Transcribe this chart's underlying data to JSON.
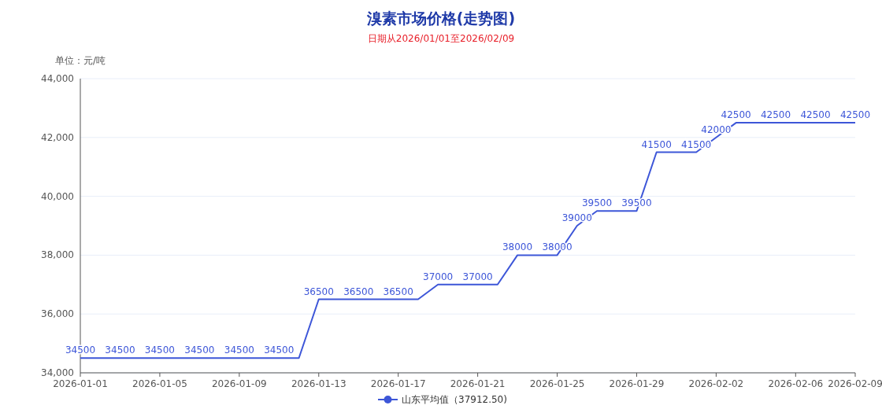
{
  "chart_data": {
    "type": "line",
    "title": "溴素市场价格(走势图)",
    "subtitle": "日期从2026/01/01至2026/02/09",
    "ylabel": "单位：元/吨",
    "x": [
      "2026-01-01",
      "2026-01-02",
      "2026-01-03",
      "2026-01-04",
      "2026-01-05",
      "2026-01-06",
      "2026-01-07",
      "2026-01-08",
      "2026-01-09",
      "2026-01-10",
      "2026-01-11",
      "2026-01-12",
      "2026-01-13",
      "2026-01-14",
      "2026-01-15",
      "2026-01-16",
      "2026-01-17",
      "2026-01-18",
      "2026-01-19",
      "2026-01-20",
      "2026-01-21",
      "2026-01-22",
      "2026-01-23",
      "2026-01-24",
      "2026-01-25",
      "2026-01-26",
      "2026-01-27",
      "2026-01-28",
      "2026-01-29",
      "2026-01-30",
      "2026-01-31",
      "2026-02-01",
      "2026-02-02",
      "2026-02-03",
      "2026-02-04",
      "2026-02-05",
      "2026-02-06",
      "2026-02-07",
      "2026-02-08",
      "2026-02-09"
    ],
    "series": [
      {
        "name": "山东平均值（37912.50)",
        "color": "#3d56d8",
        "values": [
          34500,
          34500,
          34500,
          34500,
          34500,
          34500,
          34500,
          34500,
          34500,
          34500,
          34500,
          34500,
          36500,
          36500,
          36500,
          36500,
          36500,
          36500,
          37000,
          37000,
          37000,
          37000,
          38000,
          38000,
          38000,
          39000,
          39500,
          39500,
          39500,
          41500,
          41500,
          41500,
          42000,
          42500,
          42500,
          42500,
          42500,
          42500,
          42500,
          42500
        ],
        "value_labels": [
          "34500",
          null,
          "34500",
          null,
          "34500",
          null,
          "34500",
          null,
          "34500",
          null,
          "34500",
          null,
          "36500",
          null,
          "36500",
          null,
          "36500",
          null,
          "37000",
          null,
          "37000",
          null,
          "38000",
          null,
          "38000",
          "39000",
          "39500",
          null,
          "39500",
          "41500",
          null,
          "41500",
          "42000",
          "42500",
          null,
          "42500",
          null,
          "42500",
          null,
          "42500"
        ]
      }
    ],
    "xlim": [
      "2026-01-01",
      "2026-02-09"
    ],
    "xticks": [
      "2026-01-01",
      "2026-01-05",
      "2026-01-09",
      "2026-01-13",
      "2026-01-17",
      "2026-01-21",
      "2026-01-25",
      "2026-01-29",
      "2026-02-02",
      "2026-02-06",
      "2026-02-09"
    ],
    "ylim": [
      34000,
      44000
    ],
    "yticks": [
      {
        "value": 34000,
        "label": "34,000"
      },
      {
        "value": 36000,
        "label": "36,000"
      },
      {
        "value": 38000,
        "label": "38,000"
      },
      {
        "value": 40000,
        "label": "40,000"
      },
      {
        "value": 42000,
        "label": "42,000"
      },
      {
        "value": 44000,
        "label": "44,000"
      }
    ],
    "grid": "y",
    "legend": "bottom"
  }
}
